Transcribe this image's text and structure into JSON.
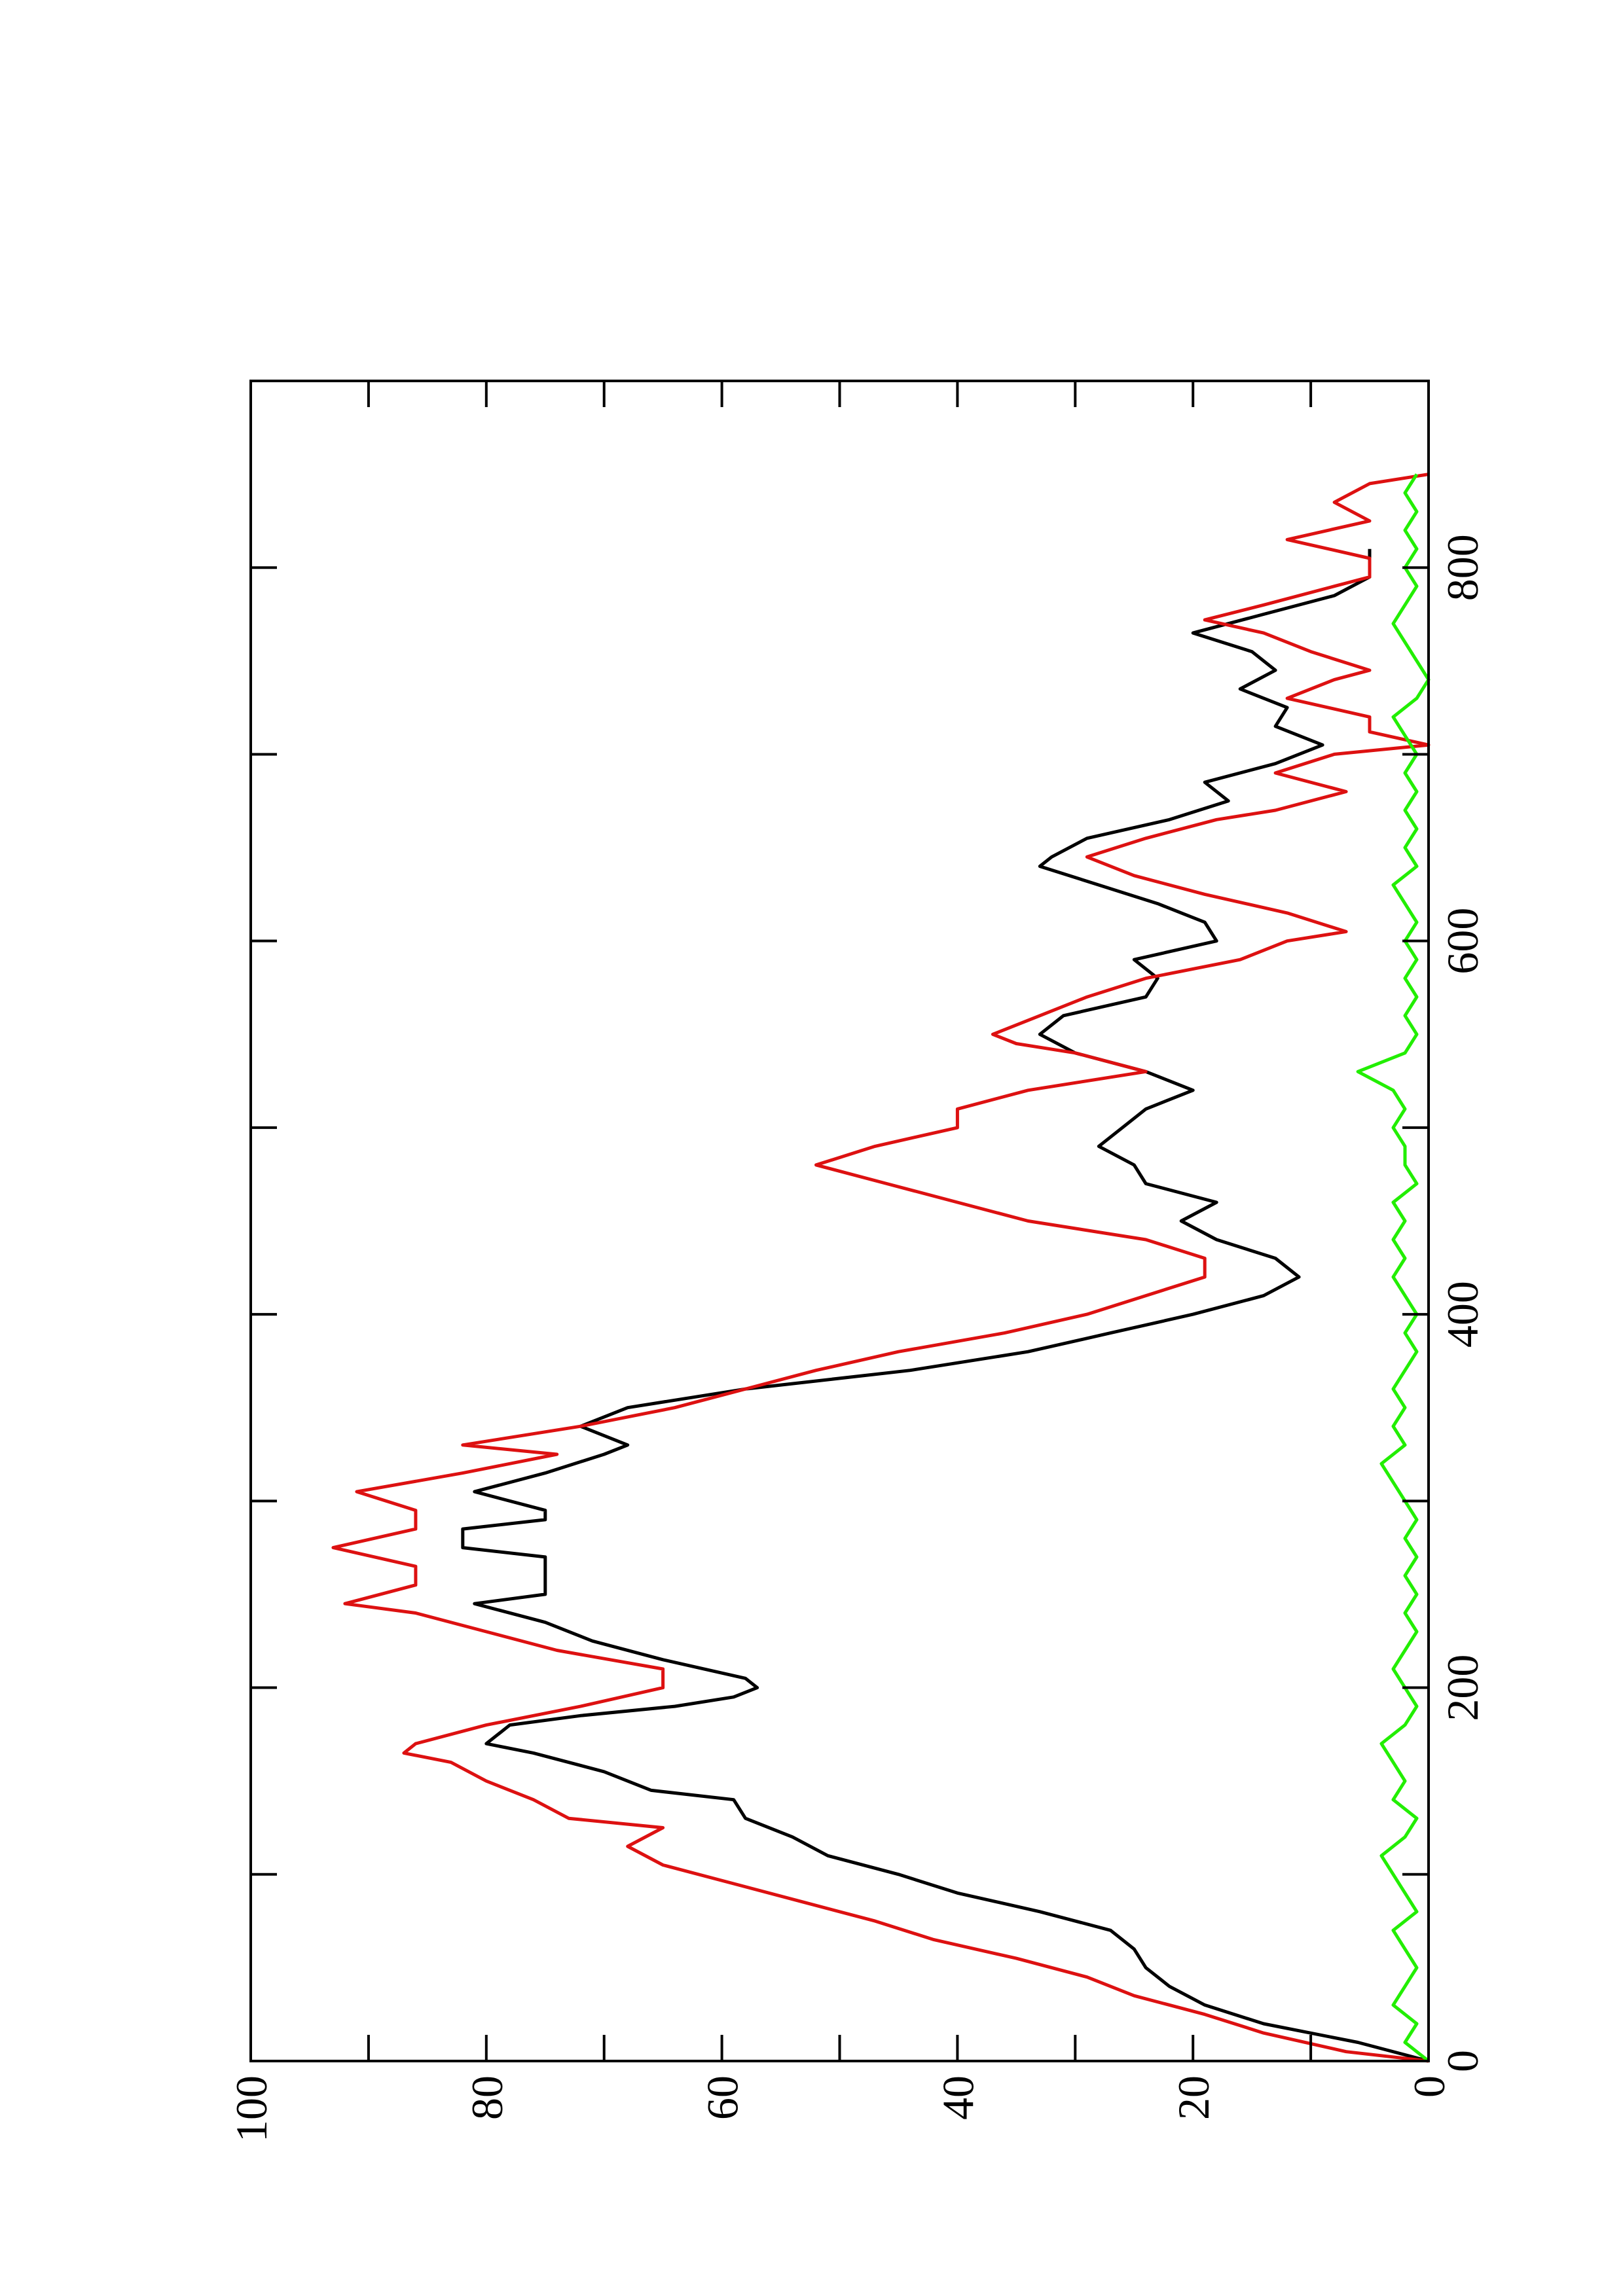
{
  "chart_data": {
    "type": "line",
    "xlim": [
      0,
      900
    ],
    "ylim": [
      0,
      100
    ],
    "xticks": [
      0,
      200,
      400,
      600,
      800
    ],
    "xminor_ticks": [
      100,
      300,
      500,
      700
    ],
    "yticks": [
      0,
      20,
      40,
      60,
      80,
      100
    ],
    "yminor_ticks": [
      10,
      30,
      50,
      70,
      90
    ],
    "series": [
      {
        "color": "#000000",
        "x": [
          0,
          10,
          20,
          30,
          40,
          50,
          60,
          70,
          80,
          90,
          100,
          110,
          120,
          130,
          140,
          145,
          155,
          165,
          170,
          180,
          185,
          190,
          195,
          200,
          205,
          215,
          225,
          235,
          245,
          250,
          260,
          270,
          275,
          285,
          290,
          295,
          305,
          315,
          325,
          330,
          340,
          350,
          360,
          370,
          380,
          390,
          400,
          410,
          420,
          430,
          440,
          450,
          460,
          470,
          480,
          490,
          500,
          510,
          520,
          530,
          540,
          550,
          560,
          570,
          580,
          590,
          600,
          610,
          620,
          630,
          640,
          645,
          655,
          665,
          675,
          685,
          695,
          705,
          715,
          725,
          735,
          745,
          755,
          765,
          775,
          785,
          795,
          800,
          810
        ],
        "values": [
          0,
          6,
          14,
          19,
          22,
          24,
          25,
          27,
          33,
          40,
          45,
          51,
          54,
          58,
          59,
          66,
          70,
          76,
          80,
          78,
          72,
          64,
          59,
          57,
          58,
          65,
          71,
          75,
          81,
          75,
          75,
          75,
          82,
          82,
          75,
          75,
          81,
          75,
          70,
          68,
          72,
          68,
          58,
          44,
          34,
          27,
          20,
          14,
          11,
          13,
          18,
          21,
          18,
          24,
          25,
          28,
          26,
          24,
          20,
          24,
          30,
          33,
          31,
          24,
          23,
          25,
          18,
          19,
          23,
          28,
          33,
          32,
          29,
          22,
          17,
          19,
          13,
          9,
          13,
          12,
          16,
          13,
          15,
          20,
          14,
          8,
          5,
          5,
          5
        ]
      },
      {
        "color": "#dd1111",
        "x": [
          0,
          5,
          15,
          25,
          35,
          45,
          55,
          65,
          75,
          85,
          95,
          105,
          115,
          125,
          130,
          140,
          150,
          160,
          165,
          170,
          180,
          190,
          200,
          210,
          220,
          230,
          240,
          245,
          255,
          265,
          275,
          285,
          295,
          305,
          315,
          325,
          330,
          340,
          350,
          360,
          370,
          380,
          390,
          400,
          410,
          420,
          430,
          440,
          450,
          460,
          470,
          480,
          490,
          500,
          510,
          520,
          530,
          540,
          545,
          550,
          560,
          570,
          580,
          590,
          600,
          605,
          615,
          625,
          635,
          645,
          655,
          665,
          670,
          680,
          690,
          700,
          705,
          712,
          720,
          730,
          740,
          745,
          755,
          765,
          772,
          780,
          790,
          795,
          805,
          815,
          825,
          835,
          845,
          850
        ],
        "values": [
          0,
          7,
          14,
          19,
          25,
          29,
          35,
          42,
          47,
          53,
          59,
          65,
          68,
          65,
          73,
          76,
          80,
          83,
          87,
          86,
          80,
          72,
          65,
          65,
          74,
          80,
          86,
          92,
          86,
          86,
          93,
          86,
          86,
          91,
          82,
          74,
          82,
          72,
          64,
          58,
          52,
          45,
          36,
          29,
          24,
          19,
          19,
          24,
          34,
          40,
          46,
          52,
          47,
          40,
          40,
          34,
          24,
          30,
          35,
          37,
          33,
          29,
          24,
          16,
          12,
          7,
          12,
          19,
          25,
          29,
          24,
          18,
          13,
          7,
          13,
          8,
          0,
          5,
          5,
          12,
          8,
          5,
          10,
          14,
          19,
          14,
          8,
          5,
          5,
          12,
          5,
          8,
          5,
          0
        ]
      },
      {
        "color": "#22ee00",
        "x": [
          0,
          10,
          20,
          30,
          40,
          50,
          60,
          70,
          80,
          90,
          100,
          110,
          120,
          130,
          140,
          150,
          160,
          170,
          180,
          190,
          200,
          210,
          220,
          230,
          240,
          250,
          260,
          270,
          280,
          290,
          300,
          310,
          320,
          330,
          340,
          350,
          360,
          370,
          380,
          390,
          400,
          410,
          420,
          430,
          440,
          450,
          460,
          470,
          480,
          490,
          500,
          510,
          520,
          530,
          540,
          550,
          560,
          570,
          580,
          590,
          600,
          610,
          620,
          630,
          640,
          650,
          660,
          670,
          680,
          690,
          700,
          710,
          720,
          730,
          740,
          750,
          760,
          770,
          780,
          790,
          800,
          810,
          820,
          830,
          840,
          850
        ],
        "values": [
          0,
          2,
          1,
          3,
          2,
          1,
          2,
          3,
          1,
          2,
          3,
          4,
          2,
          1,
          3,
          2,
          3,
          4,
          2,
          1,
          2,
          3,
          2,
          1,
          2,
          1,
          2,
          1,
          2,
          1,
          2,
          3,
          4,
          2,
          3,
          2,
          3,
          2,
          1,
          2,
          1,
          2,
          3,
          2,
          3,
          2,
          3,
          1,
          2,
          2,
          3,
          2,
          3,
          6,
          2,
          1,
          2,
          1,
          2,
          1,
          2,
          1,
          2,
          3,
          1,
          2,
          1,
          2,
          1,
          2,
          1,
          2,
          3,
          1,
          0,
          1,
          2,
          3,
          2,
          1,
          2,
          1,
          2,
          1,
          2,
          1
        ]
      }
    ]
  }
}
